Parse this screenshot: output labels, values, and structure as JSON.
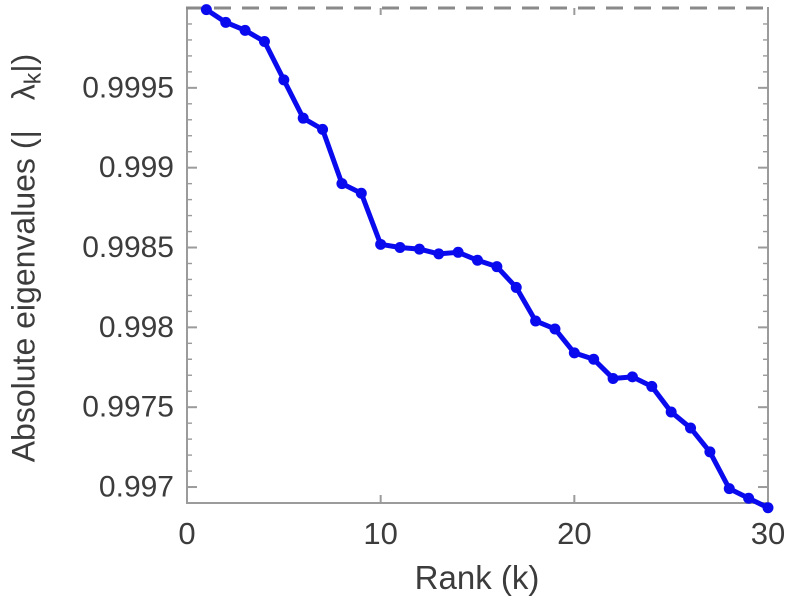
{
  "chart_data": {
    "type": "line",
    "title": "",
    "xlabel": "Rank (k)",
    "ylabel": "Absolute eigenvalues (| λ_k |)",
    "x": [
      1,
      2,
      3,
      4,
      5,
      6,
      7,
      8,
      9,
      10,
      11,
      12,
      13,
      14,
      15,
      16,
      17,
      18,
      19,
      20,
      21,
      22,
      23,
      24,
      25,
      26,
      27,
      28,
      29,
      30
    ],
    "values": [
      0.99999,
      0.99991,
      0.99986,
      0.99979,
      0.99955,
      0.99931,
      0.99924,
      0.9989,
      0.99884,
      0.99852,
      0.9985,
      0.99849,
      0.99846,
      0.99847,
      0.99842,
      0.99838,
      0.99825,
      0.99804,
      0.99799,
      0.99784,
      0.9978,
      0.99768,
      0.99769,
      0.99763,
      0.99747,
      0.99737,
      0.99722,
      0.99699,
      0.99693,
      0.99687
    ],
    "xlim": [
      0,
      30
    ],
    "ylim": [
      0.9969,
      1.0
    ],
    "xticks": [
      0,
      10,
      20,
      30
    ],
    "xtick_labels": [
      "0",
      "10",
      "20",
      "30"
    ],
    "yticks": [
      0.9995,
      0.999,
      0.9985,
      0.998,
      0.9975,
      0.997
    ],
    "ytick_labels": [
      "0.9995",
      "0.999",
      "0.9985",
      "0.998",
      "0.9975",
      "0.997"
    ],
    "minor_ytick_step": 0.0001,
    "reference_line": {
      "y": 1.0,
      "style": "dashed"
    },
    "grid": false,
    "legend": null,
    "marker": "circle"
  },
  "labels": {
    "xlabel": "Rank (k)",
    "ylabel_prefix": "Absolute eigenvalues (|",
    "ylabel_symbol": "λ",
    "ylabel_subscript": "k",
    "ylabel_suffix": "|)"
  },
  "colors": {
    "series_blue": "#0a0aee",
    "spine_gray": "#9b9b9b",
    "dash_gray": "#8a8a8a",
    "text_gray": "#3c3c3c"
  }
}
